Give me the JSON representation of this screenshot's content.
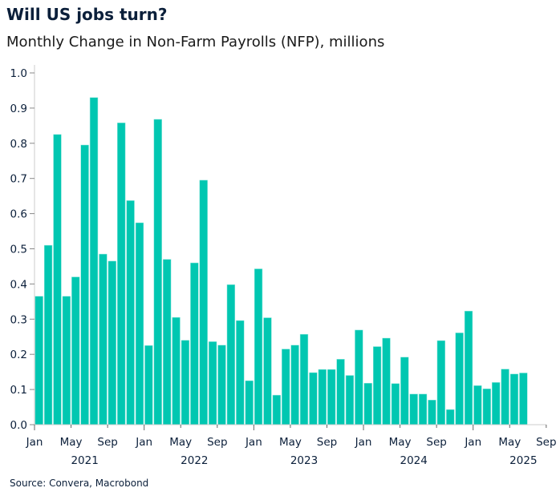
{
  "title": "Will US jobs turn?",
  "subtitle": "Monthly Change in Non-Farm Payrolls (NFP), millions",
  "source": "Source: Convera, Macrobond",
  "chart_data": {
    "type": "bar",
    "bar_color": "#00C7B1",
    "ylim": [
      0,
      1.0
    ],
    "yticks": [
      "0.0",
      "0.1",
      "0.2",
      "0.3",
      "0.4",
      "0.5",
      "0.6",
      "0.7",
      "0.8",
      "0.9",
      "1.0"
    ],
    "x_start": "2021-01",
    "x_end": "2025-09",
    "month_ticks": [
      "Jan",
      "May",
      "Sep",
      "Jan",
      "May",
      "Sep",
      "Jan",
      "May",
      "Sep",
      "Jan",
      "May",
      "Sep",
      "Jan",
      "May",
      "Sep"
    ],
    "year_labels": [
      "2021",
      "2022",
      "2023",
      "2024",
      "2025"
    ],
    "categories": [
      "2021-01",
      "2021-02",
      "2021-03",
      "2021-04",
      "2021-05",
      "2021-06",
      "2021-07",
      "2021-08",
      "2021-09",
      "2021-10",
      "2021-11",
      "2021-12",
      "2022-01",
      "2022-02",
      "2022-03",
      "2022-04",
      "2022-05",
      "2022-06",
      "2022-07",
      "2022-08",
      "2022-09",
      "2022-10",
      "2022-11",
      "2022-12",
      "2023-01",
      "2023-02",
      "2023-03",
      "2023-04",
      "2023-05",
      "2023-06",
      "2023-07",
      "2023-08",
      "2023-09",
      "2023-10",
      "2023-11",
      "2023-12",
      "2024-01",
      "2024-02",
      "2024-03",
      "2024-04",
      "2024-05",
      "2024-06",
      "2024-07",
      "2024-08",
      "2024-09",
      "2024-10",
      "2024-11",
      "2024-12",
      "2025-01",
      "2025-02",
      "2025-03",
      "2025-04",
      "2025-05",
      "2025-06"
    ],
    "values": [
      0.365,
      0.51,
      0.825,
      0.365,
      0.42,
      0.795,
      0.93,
      0.485,
      0.465,
      0.858,
      0.637,
      0.574,
      0.225,
      0.868,
      0.47,
      0.305,
      0.24,
      0.46,
      0.695,
      0.236,
      0.226,
      0.398,
      0.296,
      0.125,
      0.443,
      0.304,
      0.084,
      0.215,
      0.226,
      0.257,
      0.148,
      0.157,
      0.157,
      0.186,
      0.14,
      0.269,
      0.118,
      0.222,
      0.246,
      0.117,
      0.192,
      0.087,
      0.087,
      0.07,
      0.239,
      0.043,
      0.261,
      0.323,
      0.111,
      0.102,
      0.12,
      0.158,
      0.144,
      0.147
    ]
  }
}
